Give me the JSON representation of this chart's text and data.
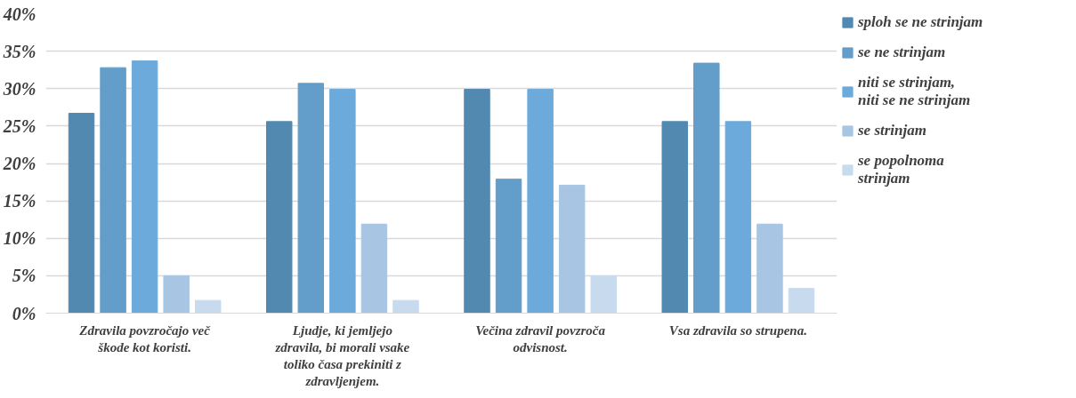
{
  "chart_data": {
    "type": "bar",
    "categories": [
      "Zdravila povzročajo več škode kot koristi.",
      "Ljudje, ki jemljejo zdravila, bi morali vsake toliko časa prekiniti z zdravljenjem.",
      "Večina zdravil povzroča odvisnost.",
      "Vsa zdravila so strupena."
    ],
    "series": [
      {
        "name": "sploh se ne strinjam",
        "color": "#5289b0",
        "values": [
          26.7,
          25.6,
          29.9,
          25.6
        ]
      },
      {
        "name": "se ne strinjam",
        "color": "#639dc9",
        "values": [
          32.8,
          30.7,
          17.9,
          33.4
        ]
      },
      {
        "name": "niti se strinjam, niti se ne strinjam",
        "color": "#6caadc",
        "values": [
          33.7,
          29.9,
          29.9,
          25.6
        ]
      },
      {
        "name": "se strinjam",
        "color": "#a8c5e4",
        "values": [
          5.0,
          11.9,
          17.1,
          11.9
        ]
      },
      {
        "name": "se popolnoma strinjam",
        "color": "#c8daee",
        "values": [
          1.7,
          1.7,
          5.0,
          3.3
        ]
      }
    ],
    "ylim": [
      0,
      40
    ],
    "yticks": [
      {
        "value": 0,
        "label": "0%"
      },
      {
        "value": 5,
        "label": "5%"
      },
      {
        "value": 10,
        "label": "10%"
      },
      {
        "value": 15,
        "label": "15%"
      },
      {
        "value": 20,
        "label": "20%"
      },
      {
        "value": 25,
        "label": "25%"
      },
      {
        "value": 30,
        "label": "30%"
      },
      {
        "value": 35,
        "label": "35%"
      },
      {
        "value": 40,
        "label": "40%"
      }
    ],
    "grid": "y",
    "legend": "right"
  }
}
